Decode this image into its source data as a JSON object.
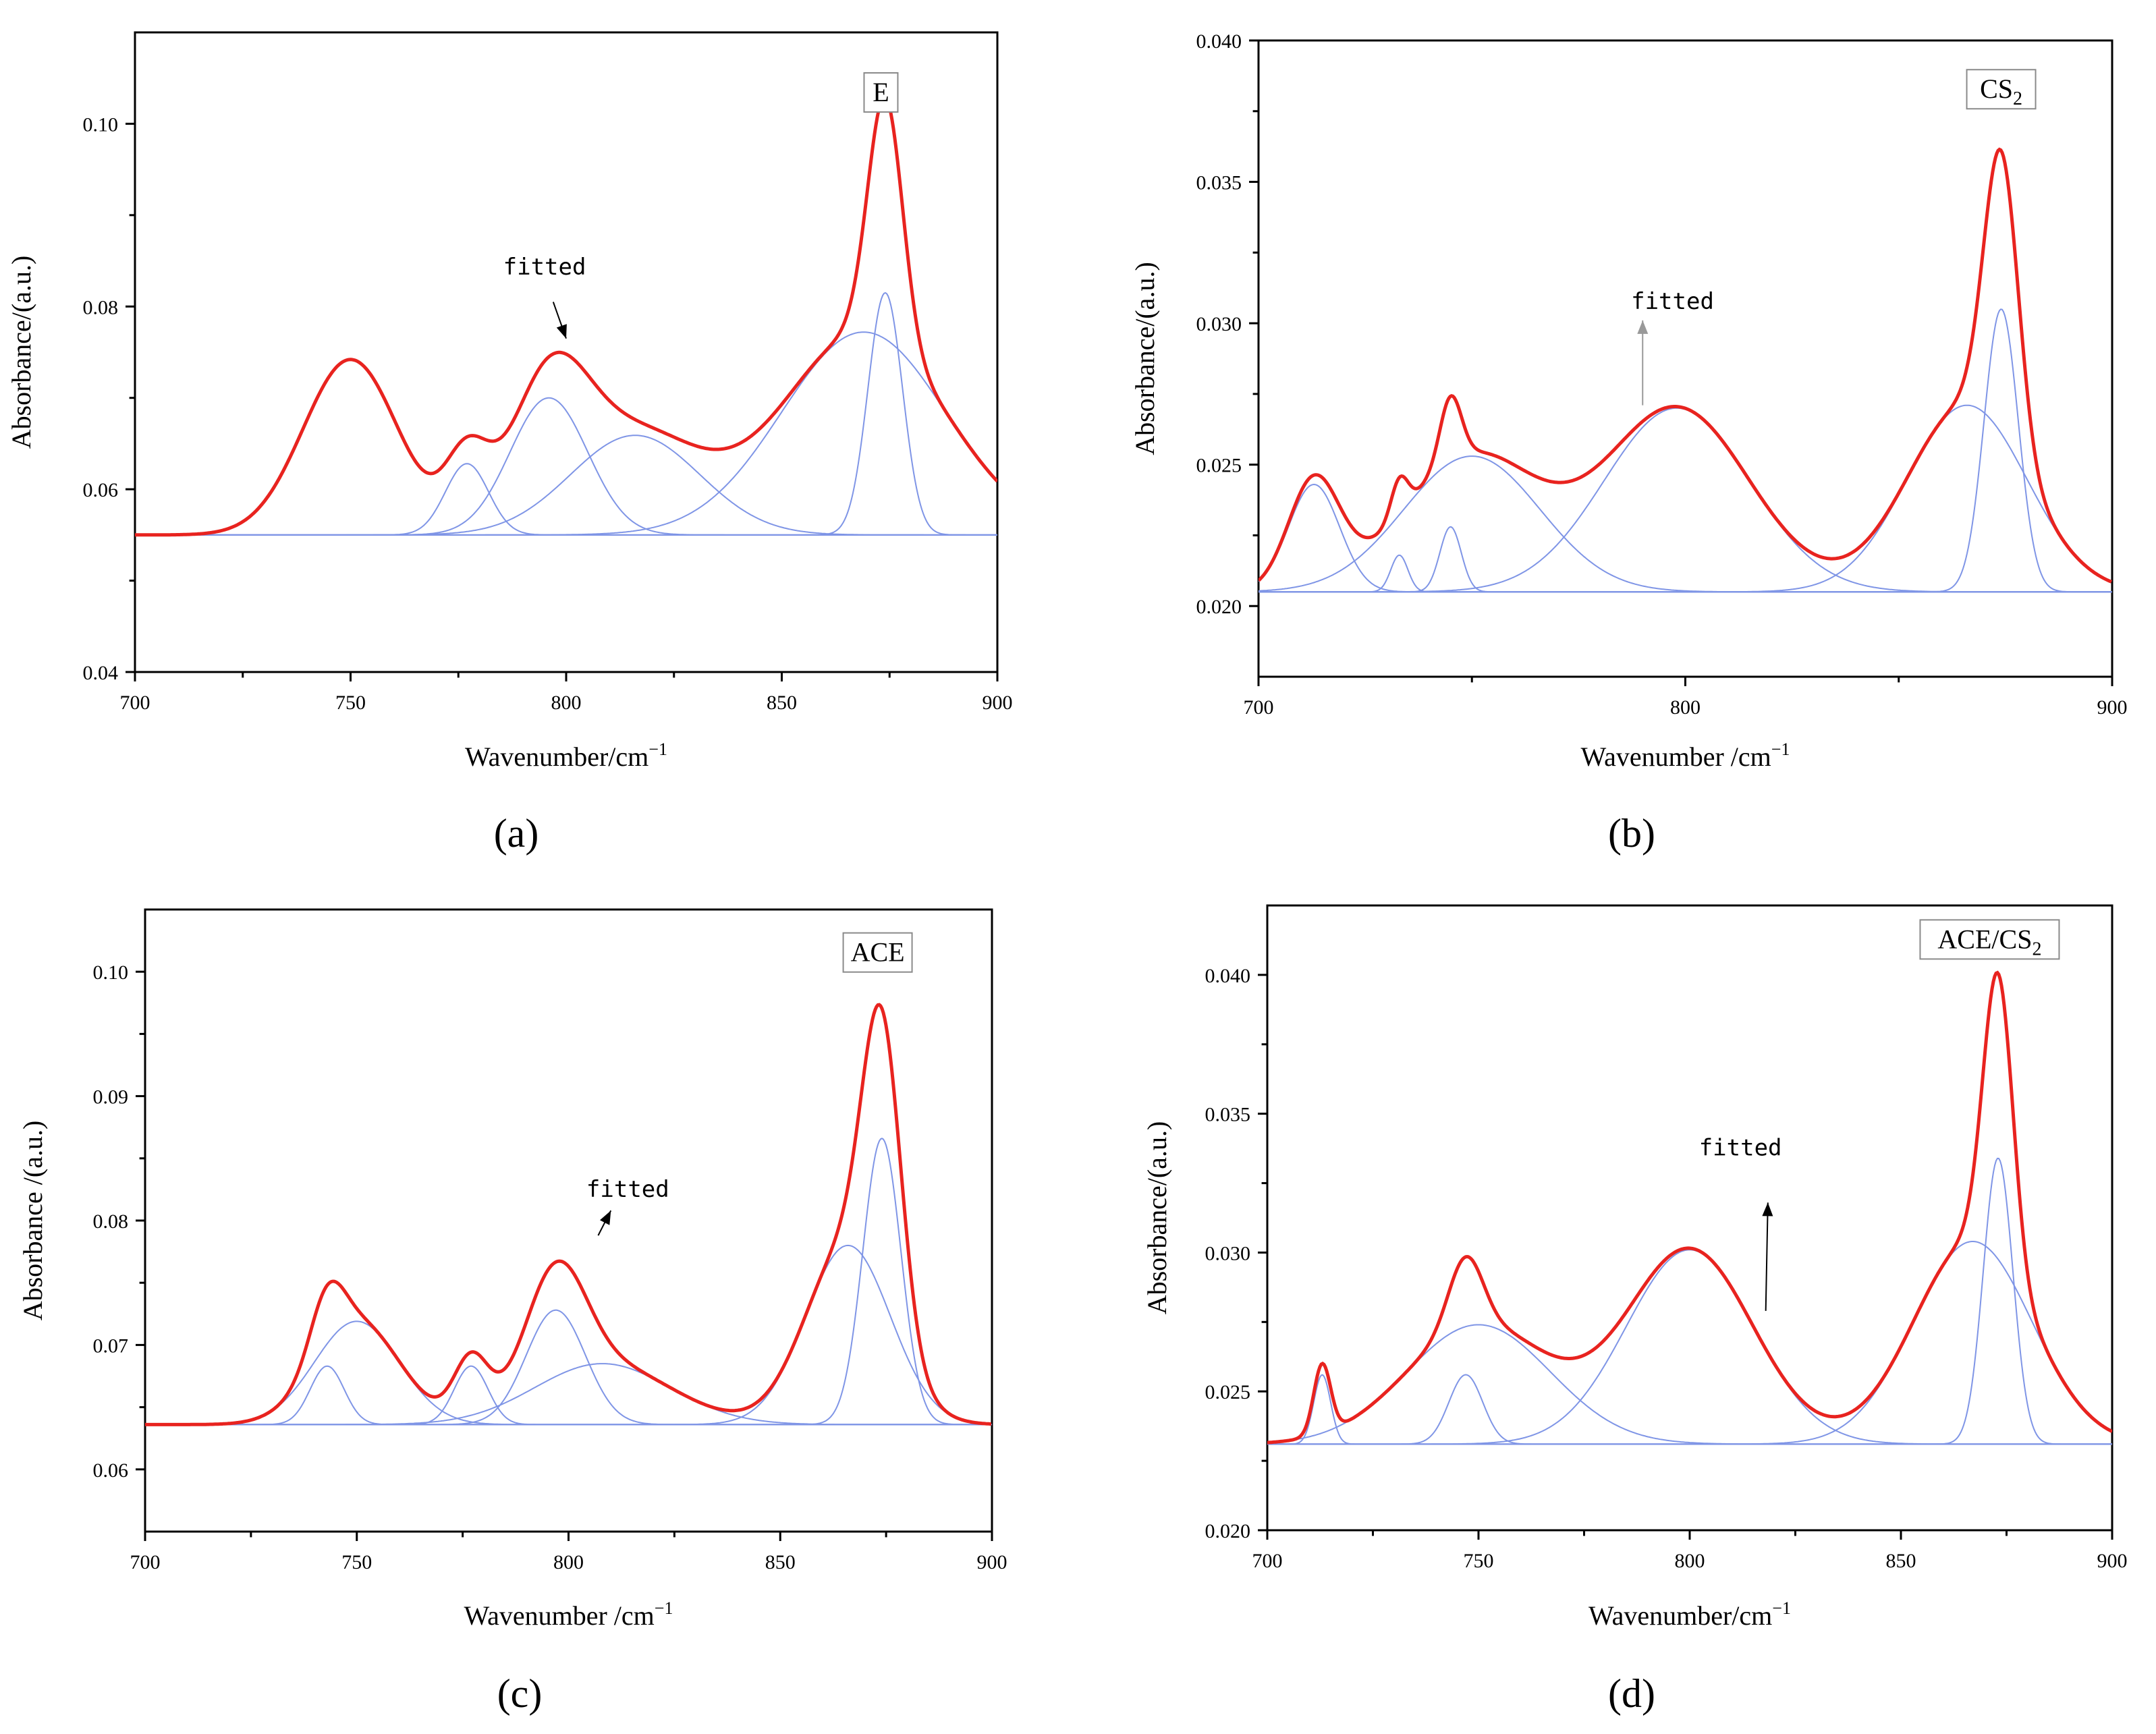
{
  "figure": {
    "colors": {
      "fitted": "#e8231f",
      "components": "#7f95e6",
      "axis": "#000000"
    }
  },
  "chart_data": [
    {
      "id": "a",
      "type": "line",
      "panel_label": "(a)",
      "sample_label": {
        "text": "E",
        "sub": ""
      },
      "annotation": "fitted",
      "xlabel": "Wavenumber/cm",
      "xlabel_sup": "−1",
      "ylabel": "Absorbance/(a.u.)",
      "xlim": [
        700,
        900
      ],
      "ylim": [
        0.04,
        0.11
      ],
      "xticks": [
        700,
        750,
        800,
        850,
        900
      ],
      "yticks": [
        0.04,
        0.06,
        0.08,
        0.1
      ],
      "ytick_labels": [
        "0.04",
        "0.06",
        "0.08",
        "0.10"
      ],
      "baseline": 0.055,
      "annotation_text_at": [
        795,
        0.0835
      ],
      "annotation_arrow": [
        [
          797,
          0.0805
        ],
        [
          800,
          0.0765
        ]
      ],
      "label_box_at": [
        873,
        0.1035
      ],
      "peaks": [
        {
          "center": 750,
          "amplitude": 0.0192,
          "width": 11
        },
        {
          "center": 777,
          "amplitude": 0.0078,
          "width": 5
        },
        {
          "center": 796,
          "amplitude": 0.015,
          "width": 9
        },
        {
          "center": 816,
          "amplitude": 0.0109,
          "width": 15
        },
        {
          "center": 869,
          "amplitude": 0.0222,
          "width": 19
        },
        {
          "center": 874,
          "amplitude": 0.0265,
          "width": 4
        }
      ],
      "fitted_peak_indices": [
        0,
        1,
        2,
        3,
        4,
        5
      ],
      "component_indices": [
        1,
        2,
        3,
        4,
        5
      ]
    },
    {
      "id": "b",
      "type": "line",
      "panel_label": "(b)",
      "sample_label": {
        "text": "CS",
        "sub": "2"
      },
      "annotation": "fitted",
      "xlabel": "Wavenumber /cm",
      "xlabel_sup": "−1",
      "ylabel": "Absorbance/(a.u.)",
      "xlim": [
        700,
        900
      ],
      "ylim": [
        0.0175,
        0.04
      ],
      "xticks": [
        700,
        800,
        900
      ],
      "yticks": [
        0.02,
        0.025,
        0.03,
        0.035,
        0.04
      ],
      "ytick_labels": [
        "0.020",
        "0.025",
        "0.030",
        "0.035",
        "0.040"
      ],
      "baseline": 0.0205,
      "annotation_text_at": [
        797,
        0.0305
      ],
      "annotation_arrow": [
        [
          790,
          0.0271
        ],
        [
          790,
          0.0301
        ]
      ],
      "label_box_at": [
        874,
        0.0383
      ],
      "peaks": [
        {
          "center": 713,
          "amplitude": 0.0038,
          "width": 6
        },
        {
          "center": 733,
          "amplitude": 0.0013,
          "width": 2
        },
        {
          "center": 745,
          "amplitude": 0.0023,
          "width": 2.5
        },
        {
          "center": 750,
          "amplitude": 0.0048,
          "width": 16
        },
        {
          "center": 798,
          "amplitude": 0.0065,
          "width": 17
        },
        {
          "center": 866,
          "amplitude": 0.0066,
          "width": 14
        },
        {
          "center": 874,
          "amplitude": 0.01,
          "width": 4
        }
      ],
      "fitted_peak_indices": [
        0,
        1,
        2,
        3,
        4,
        5,
        6
      ],
      "component_indices": [
        0,
        1,
        2,
        3,
        4,
        5,
        6
      ]
    },
    {
      "id": "c",
      "type": "line",
      "panel_label": "(c)",
      "sample_label": {
        "text": "ACE",
        "sub": ""
      },
      "annotation": "fitted",
      "xlabel": "Wavenumber /cm",
      "xlabel_sup": "−1",
      "ylabel": "Absorbance /(a.u.)",
      "xlim": [
        700,
        900
      ],
      "ylim": [
        0.055,
        0.105
      ],
      "xticks": [
        700,
        750,
        800,
        850,
        900
      ],
      "yticks": [
        0.06,
        0.07,
        0.08,
        0.09,
        0.1
      ],
      "ytick_labels": [
        "0.06",
        "0.07",
        "0.08",
        "0.09",
        "0.10"
      ],
      "baseline": 0.0636,
      "annotation_text_at": [
        814,
        0.0819
      ],
      "annotation_arrow": [
        [
          807,
          0.0788
        ],
        [
          810,
          0.0808
        ]
      ],
      "label_box_at": [
        873,
        0.1016
      ],
      "peaks": [
        {
          "center": 743,
          "amplitude": 0.0047,
          "width": 4
        },
        {
          "center": 750,
          "amplitude": 0.0083,
          "width": 10
        },
        {
          "center": 777,
          "amplitude": 0.0047,
          "width": 4
        },
        {
          "center": 797,
          "amplitude": 0.0092,
          "width": 7
        },
        {
          "center": 808,
          "amplitude": 0.0049,
          "width": 16
        },
        {
          "center": 866,
          "amplitude": 0.0144,
          "width": 10
        },
        {
          "center": 874,
          "amplitude": 0.023,
          "width": 4.5
        }
      ],
      "fitted_peak_indices": [
        0,
        1,
        2,
        3,
        4,
        5,
        6
      ],
      "component_indices": [
        0,
        1,
        2,
        3,
        4,
        5,
        6
      ]
    },
    {
      "id": "d",
      "type": "line",
      "panel_label": "(d)",
      "sample_label": {
        "text": "ACE/CS",
        "sub": "2"
      },
      "annotation": "fitted",
      "xlabel": "Wavenumber/cm",
      "xlabel_sup": "−1",
      "ylabel": "Absorbance/(a.u.)",
      "xlim": [
        700,
        900
      ],
      "ylim": [
        0.02,
        0.0425
      ],
      "xticks": [
        700,
        750,
        800,
        850,
        900
      ],
      "yticks": [
        0.02,
        0.025,
        0.03,
        0.035,
        0.04
      ],
      "ytick_labels": [
        "0.020",
        "0.025",
        "0.030",
        "0.035",
        "0.040"
      ],
      "baseline": 0.0231,
      "annotation_text_at": [
        812,
        0.0335
      ],
      "annotation_arrow": [
        [
          818,
          0.0279
        ],
        [
          818.5,
          0.0318
        ]
      ],
      "label_box_at": [
        871,
        0.0413
      ],
      "peaks": [
        {
          "center": 713,
          "amplitude": 0.0025,
          "width": 2
        },
        {
          "center": 747,
          "amplitude": 0.0025,
          "width": 4
        },
        {
          "center": 750,
          "amplitude": 0.0043,
          "width": 17
        },
        {
          "center": 800,
          "amplitude": 0.007,
          "width": 15
        },
        {
          "center": 867,
          "amplitude": 0.0073,
          "width": 14
        },
        {
          "center": 873,
          "amplitude": 0.0103,
          "width": 3.5
        }
      ],
      "fitted_peak_indices": [
        0,
        1,
        2,
        3,
        4,
        5
      ],
      "component_indices": [
        0,
        1,
        2,
        3,
        4,
        5
      ]
    }
  ]
}
